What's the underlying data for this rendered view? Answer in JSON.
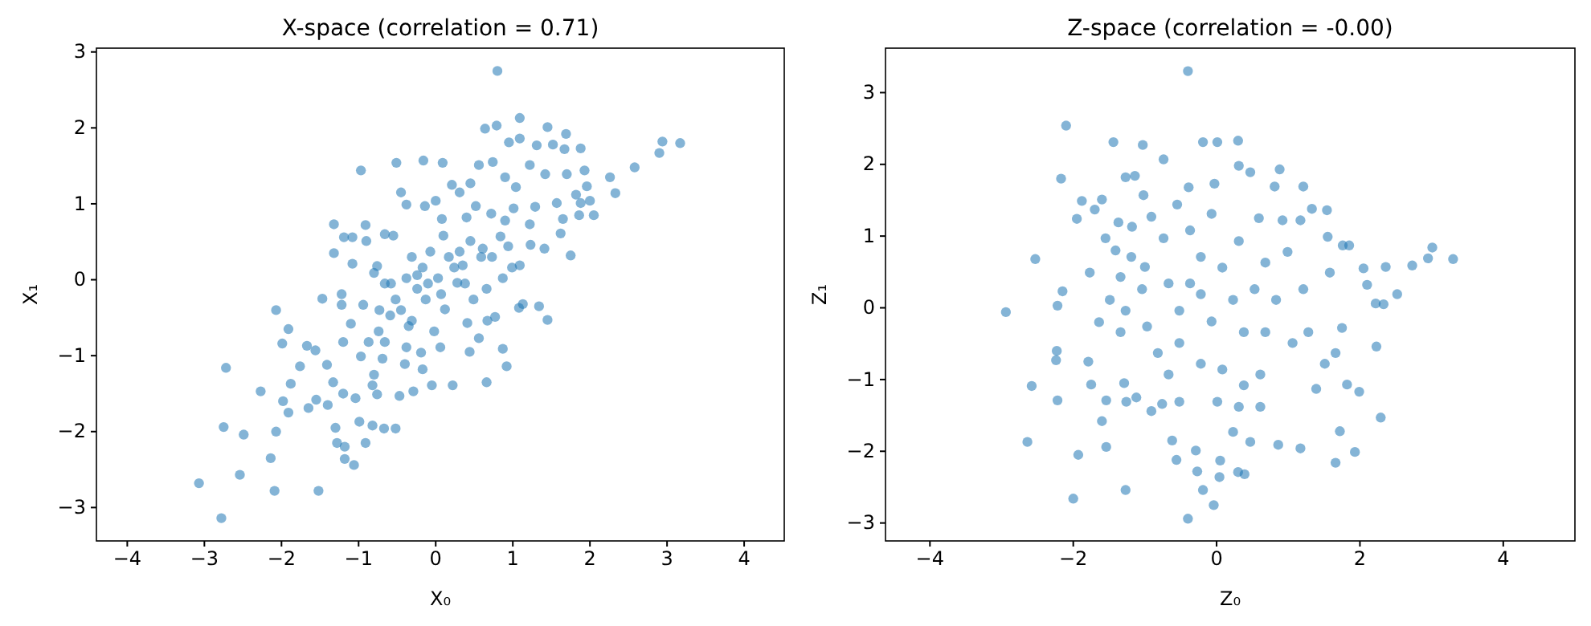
{
  "chart_data": [
    {
      "type": "scatter",
      "title": "X-space (correlation = 0.71)",
      "xlabel": "X₀",
      "ylabel": "X₁",
      "marker": "circle",
      "xlim": [
        -4.4,
        4.52
      ],
      "ylim": [
        -3.44,
        3.05
      ],
      "xticks": [
        {
          "value": -4,
          "label": "−4"
        },
        {
          "value": -3,
          "label": "−3"
        },
        {
          "value": -2,
          "label": "−2"
        },
        {
          "value": -1,
          "label": "−1"
        },
        0,
        1,
        2,
        3,
        4
      ],
      "yticks": [
        {
          "value": -3,
          "label": "−3"
        },
        {
          "value": -2,
          "label": "−2"
        },
        {
          "value": -1,
          "label": "−1"
        },
        0,
        1,
        2,
        3
      ],
      "series": [
        {
          "color": "#1f77b4",
          "x": [
            -3.07,
            -2.78,
            -2.72,
            -2.75,
            -2.49,
            -2.54,
            -2.27,
            -2.07,
            -2.14,
            -2.09,
            -2.07,
            -1.99,
            -1.91,
            -1.98,
            -1.91,
            -1.88,
            -1.76,
            -1.67,
            -1.65,
            -1.56,
            -1.55,
            -1.52,
            -1.47,
            -1.41,
            -1.4,
            -1.32,
            -1.32,
            -1.33,
            -1.3,
            -1.28,
            -1.22,
            -1.2,
            -1.2,
            -1.18,
            -1.18,
            -1.19,
            -1.08,
            -1.06,
            -1.04,
            -1.1,
            -1.08,
            -0.97,
            -0.99,
            -0.97,
            -0.91,
            -0.9,
            -0.91,
            -0.82,
            -0.82,
            -0.76,
            -0.69,
            -0.66,
            -0.67,
            -0.74,
            -0.76,
            -0.58,
            -0.55,
            -0.52,
            -0.51,
            -0.47,
            -0.45,
            -0.4,
            -0.38,
            -0.35,
            -0.31,
            -0.29,
            -0.24,
            -0.19,
            -0.16,
            -0.14,
            -0.13,
            -0.07,
            -0.05,
            -0.02,
            0,
            0.06,
            0.07,
            0.09,
            0.08,
            0.12,
            0.17,
            0.21,
            0.22,
            0.28,
            0.31,
            0.35,
            0.4,
            0.41,
            0.44,
            0.45,
            0.49,
            0.52,
            0.56,
            0.56,
            0.61,
            0.64,
            0.66,
            0.66,
            0.67,
            0.72,
            0.74,
            0.77,
            0.79,
            0.8,
            0.84,
            0.87,
            0.9,
            0.92,
            0.9,
            0.95,
            0.99,
            1.01,
            1.04,
            1.09,
            1.09,
            1.08,
            1.09,
            1.13,
            1.22,
            1.23,
            1.22,
            1.29,
            1.31,
            1.34,
            1.41,
            1.42,
            1.45,
            1.45,
            1.52,
            1.57,
            1.62,
            1.65,
            1.67,
            1.69,
            1.7,
            1.75,
            1.82,
            1.88,
            1.86,
            1.88,
            1.93,
            1.96,
            2.0,
            2.05,
            2.26,
            2.33,
            2.58,
            2.9,
            2.94,
            3.17,
            -0.8,
            -0.66,
            -0.52,
            -0.38,
            -0.24,
            -0.17,
            -0.45,
            -0.59,
            -0.31,
            -0.1,
            0.03,
            0.24,
            0.38,
            0.45,
            0.59,
            0.1,
            0.31,
            -0.73,
            -0.87,
            -0.66,
            -0.94,
            -1.22,
            -0.38,
            -0.8,
            -0.17,
            0.87,
            0.73,
            0.94
          ],
          "values": [
            -2.68,
            -3.14,
            -1.16,
            -1.94,
            -2.04,
            -2.57,
            -1.47,
            -2.0,
            -2.35,
            -2.78,
            -0.4,
            -0.84,
            -0.65,
            -1.6,
            -1.75,
            -1.37,
            -1.14,
            -0.87,
            -1.69,
            -0.93,
            -1.58,
            -2.78,
            -0.25,
            -1.12,
            -1.65,
            0.73,
            0.35,
            -1.35,
            -1.95,
            -2.15,
            -0.19,
            -0.82,
            -1.5,
            -2.2,
            -2.36,
            0.56,
            0.56,
            -2.44,
            -1.56,
            -0.58,
            0.21,
            1.44,
            -1.87,
            -1.01,
            0.72,
            0.51,
            -2.15,
            -1.92,
            -1.39,
            -1.51,
            -1.04,
            0.6,
            -1.96,
            -0.68,
            0.18,
            -0.05,
            0.58,
            -1.96,
            1.54,
            -1.53,
            1.15,
            -1.11,
            0.99,
            -0.61,
            0.3,
            -1.47,
            0.06,
            -0.96,
            1.57,
            0.97,
            -0.26,
            0.37,
            -1.39,
            -0.68,
            1.04,
            -0.89,
            -0.19,
            1.54,
            0.8,
            -0.39,
            0.3,
            1.25,
            -1.39,
            -0.04,
            1.15,
            0.19,
            0.82,
            -0.57,
            -0.95,
            1.27,
            -0.26,
            0.97,
            1.51,
            -0.77,
            0.41,
            1.99,
            -1.35,
            -0.12,
            -0.54,
            0.87,
            1.55,
            -0.49,
            2.03,
            2.75,
            0.57,
            -0.91,
            0.78,
            -1.14,
            1.35,
            1.81,
            0.16,
            0.94,
            1.22,
            2.13,
            1.86,
            -0.37,
            0.19,
            -0.32,
            0.73,
            0.46,
            1.51,
            0.96,
            1.77,
            -0.35,
            0.41,
            1.39,
            2.01,
            -0.53,
            1.78,
            1.01,
            0.61,
            0.8,
            1.72,
            1.92,
            1.39,
            0.32,
            1.12,
            1.73,
            0.85,
            1.01,
            1.44,
            1.23,
            1.04,
            0.85,
            1.35,
            1.14,
            1.48,
            1.67,
            1.82,
            1.8,
            0.09,
            -0.05,
            -0.26,
            0.02,
            -0.12,
            0.16,
            -0.4,
            -0.47,
            -0.54,
            -0.05,
            0.02,
            0.16,
            -0.05,
            0.51,
            0.3,
            0.58,
            0.37,
            -0.4,
            -0.82,
            -0.82,
            -0.33,
            -0.33,
            -0.89,
            -1.25,
            -1.18,
            0.02,
            0.3,
            0.44
          ]
        }
      ]
    },
    {
      "type": "scatter",
      "title": "Z-space (correlation = -0.00)",
      "xlabel": "Z₀",
      "ylabel": "Z₁",
      "marker": "circle",
      "xlim": [
        -4.62,
        5.0
      ],
      "ylim": [
        -3.25,
        3.62
      ],
      "xticks": [
        {
          "value": -4,
          "label": "−4"
        },
        {
          "value": -2,
          "label": "−2"
        },
        0,
        2,
        4
      ],
      "yticks": [
        {
          "value": -3,
          "label": "−3"
        },
        {
          "value": -2,
          "label": "−2"
        },
        {
          "value": -1,
          "label": "−1"
        },
        0,
        1,
        2,
        3
      ],
      "series": [
        {
          "color": "#1f77b4",
          "x": [
            -2.94,
            -2.64,
            -2.58,
            -2.53,
            -2.22,
            -2.23,
            -2.24,
            -2.22,
            -2.17,
            -2.15,
            -2.1,
            -2.0,
            -1.93,
            -1.95,
            -1.88,
            -1.79,
            -1.77,
            -1.75,
            -1.7,
            -1.64,
            -1.6,
            -1.6,
            -1.55,
            -1.54,
            -1.54,
            -1.44,
            -1.41,
            -1.37,
            -1.34,
            -1.27,
            -1.27,
            -1.29,
            -1.26,
            -1.19,
            -1.14,
            -1.18,
            -1.12,
            -1.03,
            -1.02,
            -1.0,
            -0.91,
            -0.91,
            -0.74,
            -0.74,
            -0.76,
            -0.62,
            -0.56,
            -0.55,
            -0.4,
            -0.4,
            -0.39,
            -0.29,
            -0.27,
            -0.19,
            -0.19,
            -0.04,
            0.01,
            0.04,
            0.05,
            -0.03,
            0.23,
            0.3,
            0.3,
            0.39,
            0.31,
            0.47,
            0.47,
            0.59,
            0.86,
            0.88,
            0.81,
            0.92,
            0.99,
            1.17,
            1.17,
            1.21,
            1.33,
            1.39,
            1.54,
            1.55,
            1.72,
            1.66,
            1.75,
            1.76,
            1.85,
            1.82,
            1.93,
            1.99,
            2.05,
            2.1,
            2.22,
            2.23,
            2.29,
            2.36,
            2.33,
            2.52,
            2.73,
            2.95,
            3.01,
            3.3,
            -0.67,
            -0.37,
            -0.22,
            -0.52,
            -0.07,
            0.23,
            0.53,
            0.38,
            0.68,
            0.83,
            0.08,
            -0.22,
            -0.52,
            -0.22,
            0.08,
            0.38,
            -0.67,
            -0.97,
            -1.04,
            -0.82,
            1.06,
            1.28,
            1.21,
            0.68,
            0.31,
            -0.37,
            -0.07,
            0.61,
            -0.52,
            0.01,
            0.31,
            0.61,
            -1.34,
            -1.27,
            -1.49,
            1.58,
            1.51,
            1.66
          ],
          "values": [
            -0.06,
            -1.87,
            -1.09,
            0.68,
            0.03,
            -0.6,
            -0.73,
            -1.29,
            1.8,
            0.23,
            2.54,
            -2.66,
            -2.05,
            1.24,
            1.49,
            -0.75,
            0.49,
            -1.07,
            1.37,
            -0.2,
            1.51,
            -1.58,
            0.97,
            -1.29,
            -1.94,
            2.31,
            0.8,
            1.19,
            0.43,
            1.82,
            -2.54,
            -1.05,
            -1.31,
            0.71,
            1.84,
            1.13,
            -1.25,
            2.27,
            1.57,
            0.57,
            1.27,
            -1.44,
            2.07,
            0.97,
            -1.34,
            -1.85,
            -2.12,
            1.44,
            -2.94,
            3.3,
            1.68,
            -1.99,
            -2.28,
            -2.54,
            2.31,
            -2.75,
            2.31,
            -2.36,
            -2.13,
            1.73,
            -1.73,
            2.33,
            -2.29,
            -2.32,
            1.98,
            1.89,
            -1.87,
            1.25,
            -1.91,
            1.93,
            1.69,
            1.22,
            0.78,
            -1.96,
            1.22,
            1.69,
            1.38,
            -1.13,
            1.36,
            0.99,
            -1.72,
            -2.16,
            -0.28,
            0.87,
            0.87,
            -1.07,
            -2.01,
            -1.17,
            0.55,
            0.32,
            0.06,
            -0.54,
            -1.53,
            0.57,
            0.05,
            0.19,
            0.59,
            0.69,
            0.84,
            0.68,
            0.34,
            0.34,
            0.19,
            -0.04,
            -0.19,
            0.11,
            0.26,
            -0.34,
            -0.34,
            0.11,
            0.56,
            0.71,
            -0.49,
            -0.78,
            -0.86,
            -1.08,
            -0.93,
            -0.26,
            0.26,
            -0.63,
            -0.49,
            -0.34,
            0.26,
            0.63,
            0.93,
            1.08,
            1.31,
            -0.93,
            -1.31,
            -1.31,
            -1.38,
            -1.38,
            -0.34,
            -0.04,
            0.11,
            0.49,
            -0.78,
            -0.63
          ]
        }
      ]
    }
  ]
}
